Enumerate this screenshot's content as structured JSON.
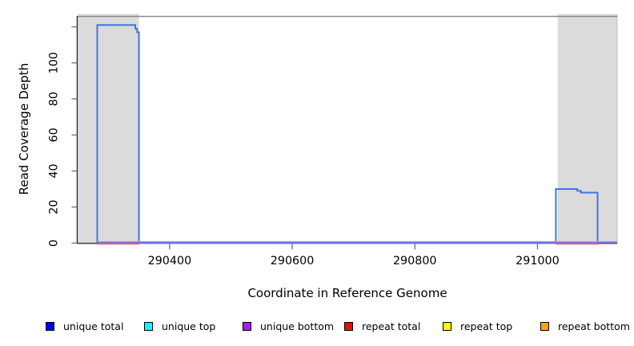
{
  "chart_data": {
    "type": "line",
    "subtype": "step-coverage-plot",
    "title": "",
    "xlabel": "Coordinate in Reference Genome",
    "ylabel": "Read Coverage Depth",
    "x_domain": [
      290250,
      291130
    ],
    "y_domain": [
      0,
      126
    ],
    "grid": "off",
    "top_rule_value": 126,
    "top_rule_color": "#8a8a8a",
    "axis_color": "#1a1a1a",
    "tick_color": "#707070",
    "x_ticks": [
      {
        "value": 290400,
        "label": "290400"
      },
      {
        "value": 290600,
        "label": "290600"
      },
      {
        "value": 290800,
        "label": "290800"
      },
      {
        "value": 291000,
        "label": "291000"
      }
    ],
    "y_ticks": [
      {
        "value": 0,
        "label": "0"
      },
      {
        "value": 20,
        "label": "20"
      },
      {
        "value": 40,
        "label": "40"
      },
      {
        "value": 60,
        "label": "60"
      },
      {
        "value": 80,
        "label": "80"
      },
      {
        "value": 100,
        "label": "100"
      },
      {
        "value": 120,
        "label": ""
      }
    ],
    "repeat_regions": {
      "color": "#dbdbdb",
      "edge_color": "#c2c2c2",
      "ranges": [
        [
          290250,
          290350
        ],
        [
          291033,
          291130
        ]
      ]
    },
    "series": [
      {
        "name": "unique total",
        "legend_color": "#0000FF",
        "draw_color": "#4273E8",
        "type": "step",
        "points": [
          [
            290282,
            0
          ],
          [
            290282,
            121
          ],
          [
            290344,
            121
          ],
          [
            290344,
            119
          ],
          [
            290347,
            119
          ],
          [
            290347,
            117
          ],
          [
            290350,
            117
          ],
          [
            290350,
            0
          ],
          [
            291030,
            0
          ],
          [
            291030,
            30
          ],
          [
            291065,
            30
          ],
          [
            291065,
            29
          ],
          [
            291071,
            29
          ],
          [
            291071,
            28
          ],
          [
            291098,
            28
          ],
          [
            291098,
            0
          ]
        ]
      },
      {
        "name": "unique top",
        "legend_color": "#00FFFF",
        "coverage": 0
      },
      {
        "name": "unique bottom",
        "legend_color": "#A020F0",
        "coverage": 0,
        "baseline": true,
        "baseline_range": [
          290282,
          291130
        ],
        "draw_color": "#6F67E5",
        "draw_color_light": "#ADA7F2"
      },
      {
        "name": "repeat total",
        "legend_color": "#FF0000",
        "coverage": 0,
        "draw_color": "#DF5F7B",
        "zero_segments": [
          [
            290282,
            290350
          ],
          [
            291030,
            291100
          ]
        ]
      },
      {
        "name": "repeat top",
        "legend_color": "#FFFF00",
        "coverage": 0
      },
      {
        "name": "repeat bottom",
        "legend_color": "#FFA500",
        "coverage": 0
      }
    ],
    "legend": {
      "items": [
        {
          "label": "unique total",
          "color": "#0000FF"
        },
        {
          "label": "unique top",
          "color": "#00FFFF"
        },
        {
          "label": "unique bottom",
          "color": "#A020F0"
        },
        {
          "label": "repeat total",
          "color": "#FF0000"
        },
        {
          "label": "repeat top",
          "color": "#FFFF00"
        },
        {
          "label": "repeat bottom",
          "color": "#FFA500"
        }
      ]
    }
  }
}
